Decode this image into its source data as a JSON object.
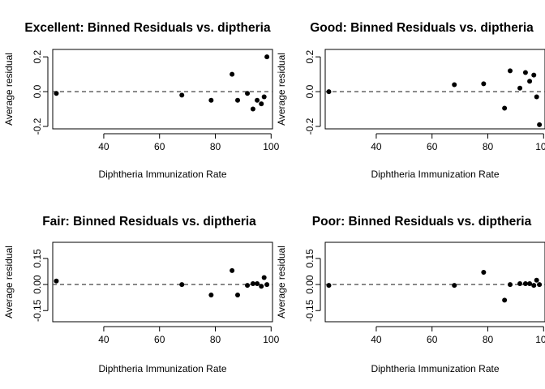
{
  "chart_data": [
    {
      "type": "scatter",
      "title": "Excellent: Binned Residuals vs. diptheria",
      "xlabel": "Diphtheria Immunization Rate",
      "ylabel": "Average residual",
      "xticks": [
        40,
        60,
        80,
        100
      ],
      "yticks": [
        -0.2,
        0.0,
        0.2
      ],
      "ytick_labels": [
        "-0.2",
        "0.0",
        "0.2"
      ],
      "xlim": [
        21.7,
        100.5
      ],
      "ylim": [
        -0.2,
        0.21
      ],
      "reference_line": {
        "y": 0,
        "style": "dashed"
      },
      "points": [
        {
          "x": 23,
          "y": -0.01
        },
        {
          "x": 68,
          "y": -0.02
        },
        {
          "x": 78.5,
          "y": -0.05
        },
        {
          "x": 86,
          "y": 0.1
        },
        {
          "x": 88,
          "y": -0.05
        },
        {
          "x": 91.5,
          "y": -0.01
        },
        {
          "x": 93.5,
          "y": -0.1
        },
        {
          "x": 95,
          "y": -0.05
        },
        {
          "x": 96.5,
          "y": -0.07
        },
        {
          "x": 97.5,
          "y": -0.03
        },
        {
          "x": 98.5,
          "y": 0.2
        }
      ]
    },
    {
      "type": "scatter",
      "title": "Good: Binned Residuals vs. diptheria",
      "xlabel": "Diphtheria Immunization Rate",
      "ylabel": "Average residual",
      "xticks": [
        40,
        60,
        80,
        100
      ],
      "yticks": [
        -0.2,
        0.0,
        0.2
      ],
      "ytick_labels": [
        "-0.2",
        "0.0",
        "0.2"
      ],
      "xlim": [
        21.7,
        100.5
      ],
      "ylim": [
        -0.2,
        0.21
      ],
      "reference_line": {
        "y": 0,
        "style": "dashed"
      },
      "points": [
        {
          "x": 23,
          "y": 0.0
        },
        {
          "x": 68,
          "y": 0.04
        },
        {
          "x": 78.5,
          "y": 0.045
        },
        {
          "x": 86,
          "y": -0.095
        },
        {
          "x": 88,
          "y": 0.12
        },
        {
          "x": 91.5,
          "y": 0.02
        },
        {
          "x": 93.5,
          "y": 0.11
        },
        {
          "x": 95,
          "y": 0.06
        },
        {
          "x": 96.5,
          "y": 0.095
        },
        {
          "x": 97.5,
          "y": -0.03
        },
        {
          "x": 98.5,
          "y": -0.19
        }
      ]
    },
    {
      "type": "scatter",
      "title": "Fair: Binned Residuals vs. diptheria",
      "xlabel": "Diphtheria Immunization Rate",
      "ylabel": "Average residual",
      "xticks": [
        40,
        60,
        80,
        100
      ],
      "yticks": [
        -0.15,
        0.0,
        0.15
      ],
      "ytick_labels": [
        "-0.15",
        "0.00",
        "0.15"
      ],
      "xlim": [
        21.7,
        100.5
      ],
      "ylim": [
        -0.2,
        0.21
      ],
      "reference_line": {
        "y": 0,
        "style": "dashed"
      },
      "points": [
        {
          "x": 23,
          "y": 0.02
        },
        {
          "x": 68,
          "y": 0.0
        },
        {
          "x": 78.5,
          "y": -0.06
        },
        {
          "x": 86,
          "y": 0.08
        },
        {
          "x": 88,
          "y": -0.06
        },
        {
          "x": 91.5,
          "y": -0.005
        },
        {
          "x": 93.5,
          "y": 0.005
        },
        {
          "x": 95,
          "y": 0.005
        },
        {
          "x": 96.5,
          "y": -0.01
        },
        {
          "x": 97.5,
          "y": 0.04
        },
        {
          "x": 98.5,
          "y": 0.0
        }
      ]
    },
    {
      "type": "scatter",
      "title": "Poor: Binned Residuals vs. diptheria",
      "xlabel": "Diphtheria Immunization Rate",
      "ylabel": "Average residual",
      "xticks": [
        40,
        60,
        80,
        100
      ],
      "yticks": [
        -0.15,
        0.0,
        0.15
      ],
      "ytick_labels": [
        "-0.15",
        "0.00",
        "0.15"
      ],
      "xlim": [
        21.7,
        100.5
      ],
      "ylim": [
        -0.2,
        0.21
      ],
      "reference_line": {
        "y": 0,
        "style": "dashed"
      },
      "points": [
        {
          "x": 23,
          "y": -0.005
        },
        {
          "x": 68,
          "y": -0.005
        },
        {
          "x": 78.5,
          "y": 0.07
        },
        {
          "x": 86,
          "y": -0.09
        },
        {
          "x": 88,
          "y": 0.0
        },
        {
          "x": 91.5,
          "y": 0.005
        },
        {
          "x": 93.5,
          "y": 0.005
        },
        {
          "x": 95,
          "y": 0.005
        },
        {
          "x": 96.5,
          "y": -0.005
        },
        {
          "x": 97.5,
          "y": 0.025
        },
        {
          "x": 98.5,
          "y": 0.0
        }
      ]
    }
  ]
}
